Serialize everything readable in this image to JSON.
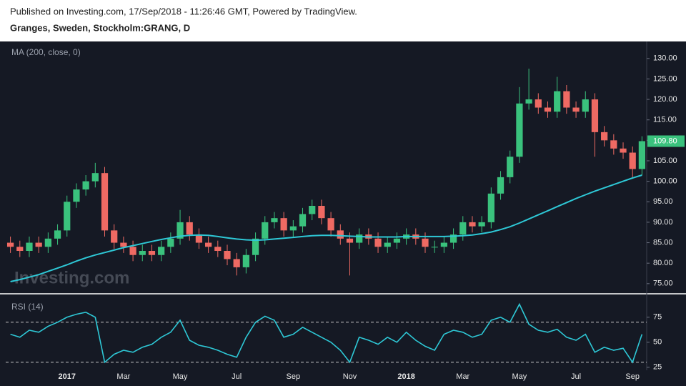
{
  "header": {
    "published": "Published on Investing.com, 17/Sep/2018 - 11:26:46 GMT, Powered by TradingView.",
    "symbol": "Granges, Sweden, Stockholm:GRANG, D"
  },
  "chart_data": [
    {
      "type": "candlestick",
      "watermark": "Investing.com",
      "categories": [
        null,
        null,
        null,
        null,
        null,
        null,
        "2017",
        null,
        null,
        null,
        null,
        null,
        "Mar",
        null,
        null,
        null,
        null,
        null,
        "May",
        null,
        null,
        null,
        null,
        null,
        "Jul",
        null,
        null,
        null,
        null,
        null,
        "Sep",
        null,
        null,
        null,
        null,
        null,
        "Nov",
        null,
        null,
        null,
        null,
        null,
        "2018",
        null,
        null,
        null,
        null,
        null,
        "Mar",
        null,
        null,
        null,
        null,
        null,
        "May",
        null,
        null,
        null,
        null,
        null,
        "Jul",
        null,
        null,
        null,
        null,
        null,
        "Sep",
        null
      ],
      "open": [
        85,
        84,
        83,
        85,
        84,
        86,
        88,
        95,
        98,
        100,
        102,
        88,
        85,
        84,
        82,
        83,
        82,
        84,
        86,
        90,
        87,
        85,
        84,
        83,
        81,
        79,
        82,
        86,
        90,
        91,
        88,
        89,
        92,
        94,
        91,
        88,
        86,
        85,
        87,
        86,
        84,
        85,
        86,
        87,
        86,
        84,
        84,
        85,
        87,
        90,
        89,
        90,
        97,
        101,
        106,
        119,
        120,
        118,
        117,
        122,
        118,
        117,
        120,
        112,
        110,
        108,
        107,
        103
      ],
      "high": [
        86.5,
        85.5,
        86.5,
        86.5,
        87.5,
        89.5,
        96.5,
        99.5,
        101.5,
        104.5,
        103.5,
        89.5,
        86.5,
        85.5,
        84.5,
        84.5,
        85.5,
        87.5,
        93,
        91.5,
        88.5,
        86.5,
        85.5,
        84.5,
        82.5,
        83.5,
        87.5,
        91.5,
        92.5,
        92.5,
        90.5,
        93.5,
        95.5,
        95.5,
        92.5,
        89.5,
        87.5,
        88.5,
        88.5,
        87.5,
        86.5,
        87.5,
        88.5,
        88.5,
        87.5,
        85.5,
        86.5,
        88.5,
        91.5,
        91.5,
        91.5,
        98.5,
        102.5,
        107.5,
        123,
        127.5,
        121.5,
        119.5,
        125.5,
        123.5,
        119.5,
        122,
        121.5,
        113.5,
        111.5,
        109.5,
        108.5,
        111
      ],
      "low": [
        82.5,
        81.5,
        81.5,
        82.5,
        82.5,
        84.5,
        86.5,
        93.5,
        96.5,
        98.5,
        86.5,
        83.5,
        82.5,
        80.5,
        80.5,
        80.5,
        80.5,
        82.5,
        84.5,
        85.5,
        83.5,
        82.5,
        81.5,
        79.5,
        77,
        77.5,
        80.5,
        84.5,
        88.5,
        86.5,
        86.5,
        87.5,
        90.5,
        89.5,
        86.5,
        84.5,
        77,
        83.5,
        84.5,
        82.5,
        82.5,
        83.5,
        84.5,
        84.5,
        82.5,
        82.5,
        82.5,
        83.5,
        85.5,
        87.5,
        87.5,
        88.5,
        95.5,
        99.5,
        104.5,
        117.5,
        116.5,
        115.5,
        115.5,
        116.5,
        115.5,
        115.5,
        106,
        108.5,
        106.5,
        105.5,
        101,
        101.5
      ],
      "close": [
        84,
        83,
        85,
        84,
        86,
        88,
        95,
        98,
        100,
        102,
        88,
        85,
        84,
        82,
        83,
        82,
        84,
        86,
        90,
        87,
        85,
        84,
        83,
        81,
        79,
        82,
        86,
        90,
        91,
        88,
        89,
        92,
        94,
        91,
        88,
        86,
        85,
        87,
        86,
        84,
        85,
        86,
        87,
        86,
        84,
        84,
        85,
        87,
        90,
        89,
        90,
        97,
        101,
        106,
        119,
        120,
        118,
        117,
        122,
        118,
        117,
        120,
        112,
        110,
        108,
        107,
        103,
        109.8
      ],
      "up_color": "#3ac27d",
      "down_color": "#ef6a63",
      "ma": {
        "name": "MA (200, close, 0)",
        "color": "#2ec8d6",
        "values": [
          75.5,
          76,
          76.6,
          77.2,
          78,
          78.8,
          79.6,
          80.5,
          81.3,
          82,
          82.6,
          83.2,
          83.8,
          84.3,
          84.8,
          85.3,
          85.8,
          86.2,
          86.6,
          86.8,
          86.9,
          86.8,
          86.5,
          86.2,
          85.9,
          85.7,
          85.6,
          85.7,
          85.9,
          86.1,
          86.3,
          86.5,
          86.7,
          86.8,
          86.8,
          86.7,
          86.6,
          86.5,
          86.4,
          86.4,
          86.4,
          86.4,
          86.5,
          86.5,
          86.5,
          86.5,
          86.5,
          86.6,
          86.7,
          86.9,
          87.2,
          87.6,
          88.2,
          88.9,
          89.8,
          90.8,
          91.8,
          92.8,
          93.8,
          94.8,
          95.8,
          96.7,
          97.6,
          98.4,
          99.2,
          100,
          100.8,
          101.5
        ]
      },
      "last_price": {
        "value": 109.8,
        "label": "109.80"
      },
      "ylim": [
        72.7,
        133.8
      ],
      "yticks": [
        {
          "value": 75,
          "label": "75.00"
        },
        {
          "value": 80,
          "label": "80.00"
        },
        {
          "value": 85,
          "label": "85.00"
        },
        {
          "value": 90,
          "label": "90.00"
        },
        {
          "value": 95,
          "label": "95.00"
        },
        {
          "value": 100,
          "label": "100.00"
        },
        {
          "value": 105,
          "label": "105.00"
        },
        {
          "value": 110,
          "label": "110.00"
        },
        {
          "value": 115,
          "label": "115.00"
        },
        {
          "value": 120,
          "label": "120.00"
        },
        {
          "value": 125,
          "label": "125.00"
        },
        {
          "value": 130,
          "label": "130.00"
        }
      ]
    },
    {
      "type": "line",
      "title": "RSI (14)",
      "color": "#2ec8d6",
      "values": [
        58,
        55,
        62,
        60,
        66,
        70,
        75,
        78,
        80,
        75,
        30,
        38,
        42,
        40,
        45,
        48,
        55,
        60,
        72,
        52,
        47,
        45,
        42,
        38,
        35,
        55,
        70,
        76,
        72,
        55,
        58,
        65,
        60,
        55,
        50,
        42,
        30,
        55,
        52,
        48,
        55,
        50,
        60,
        52,
        46,
        42,
        58,
        62,
        60,
        55,
        58,
        72,
        75,
        70,
        88,
        68,
        62,
        60,
        63,
        55,
        52,
        58,
        40,
        45,
        42,
        44,
        30,
        58
      ],
      "bands": [
        30,
        70
      ],
      "ylim": [
        22,
        97
      ],
      "yticks": [
        25,
        50,
        75
      ]
    }
  ]
}
